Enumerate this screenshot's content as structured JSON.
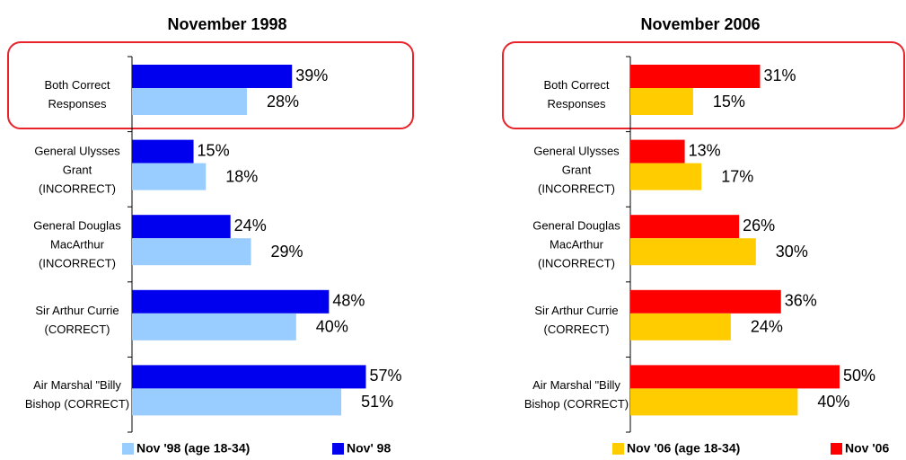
{
  "chart_data": [
    {
      "type": "bar",
      "orientation": "horizontal",
      "title": "November 1998",
      "categories": [
        "Both Correct Responses",
        "General Ulysses Grant (INCORRECT)",
        "General Douglas MacArthur (INCORRECT)",
        "Sir Arthur Currie (CORRECT)",
        "Air Marshal \"Billy Bishop (CORRECT)"
      ],
      "series": [
        {
          "name": "Nov '98 (age 18-34)",
          "color": "#99ccff",
          "values": [
            28,
            18,
            29,
            40,
            51
          ],
          "value_labels": [
            "28%",
            "18%",
            "29%",
            "40%",
            "51%"
          ]
        },
        {
          "name": "Nov' 98",
          "color": "#0000ee",
          "values": [
            39,
            15,
            24,
            48,
            57
          ],
          "value_labels": [
            "39%",
            "15%",
            "24%",
            "48%",
            "57%"
          ]
        }
      ]
    },
    {
      "type": "bar",
      "orientation": "horizontal",
      "title": "November 2006",
      "categories": [
        "Both Correct Responses",
        "General Ulysses Grant (INCORRECT)",
        "General Douglas MacArthur (INCORRECT)",
        "Sir Arthur Currie (CORRECT)",
        "Air Marshal \"Billy Bishop (CORRECT)"
      ],
      "series": [
        {
          "name": "Nov '06 (age 18-34)",
          "color": "#ffcc00",
          "values": [
            15,
            17,
            30,
            24,
            40
          ],
          "value_labels": [
            "15%",
            "17%",
            "30%",
            "24%",
            "40%"
          ]
        },
        {
          "name": "Nov '06",
          "color": "#ff0000",
          "values": [
            31,
            13,
            26,
            36,
            50
          ],
          "value_labels": [
            "31%",
            "13%",
            "26%",
            "36%",
            "50%"
          ]
        }
      ]
    }
  ]
}
